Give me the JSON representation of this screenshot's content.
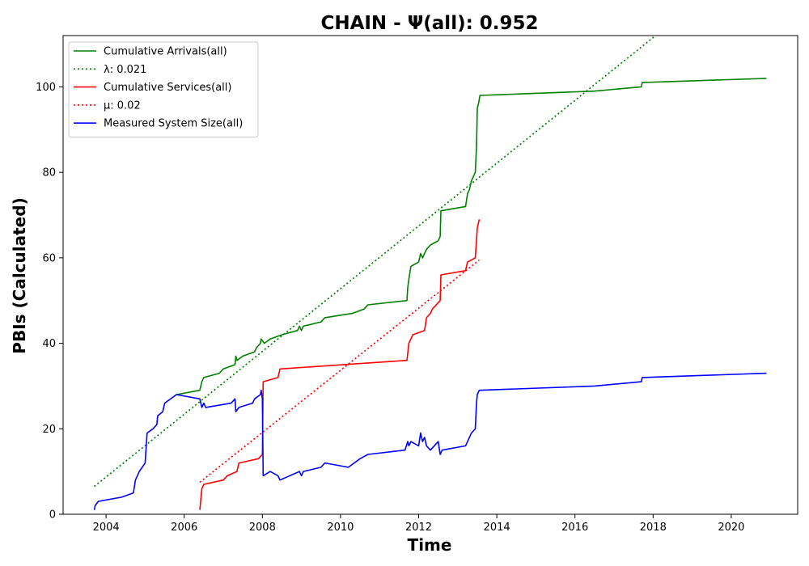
{
  "chart_data": {
    "type": "line",
    "title": "CHAIN -  Ψ(all): 0.952",
    "xlabel": "Time",
    "ylabel": "PBIs (Calculated)",
    "xlim": [
      2002.9,
      2021.7
    ],
    "ylim": [
      0,
      112
    ],
    "x_ticks": [
      2004,
      2006,
      2008,
      2010,
      2012,
      2014,
      2016,
      2018,
      2020
    ],
    "y_ticks": [
      0,
      20,
      40,
      60,
      80,
      100
    ],
    "grid": false,
    "legend_position": "upper-left",
    "series": [
      {
        "name": "Cumulative Arrivals(all)",
        "color": "#008000",
        "style": "solid",
        "points": [
          [
            2005.8,
            28
          ],
          [
            2006.4,
            29
          ],
          [
            2006.45,
            31
          ],
          [
            2006.5,
            32
          ],
          [
            2006.9,
            33
          ],
          [
            2007.0,
            34
          ],
          [
            2007.3,
            35
          ],
          [
            2007.32,
            37
          ],
          [
            2007.35,
            36
          ],
          [
            2007.5,
            37
          ],
          [
            2007.8,
            38
          ],
          [
            2007.85,
            39
          ],
          [
            2007.95,
            40
          ],
          [
            2007.97,
            41
          ],
          [
            2008.05,
            40
          ],
          [
            2008.2,
            41
          ],
          [
            2008.5,
            42
          ],
          [
            2008.9,
            43
          ],
          [
            2008.95,
            44
          ],
          [
            2009.0,
            43
          ],
          [
            2009.05,
            44
          ],
          [
            2009.5,
            45
          ],
          [
            2009.6,
            46
          ],
          [
            2010.3,
            47
          ],
          [
            2010.6,
            48
          ],
          [
            2010.7,
            49
          ],
          [
            2011.7,
            50
          ],
          [
            2011.72,
            53
          ],
          [
            2011.75,
            55
          ],
          [
            2011.8,
            58
          ],
          [
            2012.0,
            59
          ],
          [
            2012.05,
            61
          ],
          [
            2012.1,
            60
          ],
          [
            2012.2,
            62
          ],
          [
            2012.3,
            63
          ],
          [
            2012.5,
            64
          ],
          [
            2012.55,
            65
          ],
          [
            2012.57,
            71
          ],
          [
            2013.2,
            72
          ],
          [
            2013.25,
            75
          ],
          [
            2013.3,
            76
          ],
          [
            2013.35,
            78
          ],
          [
            2013.45,
            80
          ],
          [
            2013.48,
            86
          ],
          [
            2013.5,
            95
          ],
          [
            2013.53,
            96
          ],
          [
            2013.57,
            98
          ],
          [
            2016.5,
            99
          ],
          [
            2017.7,
            100
          ],
          [
            2017.72,
            101
          ],
          [
            2020.9,
            102
          ]
        ]
      },
      {
        "name": "λ: 0.021",
        "color": "#008000",
        "style": "dotted",
        "points": [
          [
            2003.7,
            6.5
          ],
          [
            2018.2,
            113
          ]
        ]
      },
      {
        "name": "Cumulative Services(all)",
        "color": "#ff0000",
        "style": "solid",
        "points": [
          [
            2006.4,
            1
          ],
          [
            2006.42,
            3
          ],
          [
            2006.45,
            6
          ],
          [
            2006.5,
            7
          ],
          [
            2007.0,
            8
          ],
          [
            2007.1,
            9
          ],
          [
            2007.35,
            10
          ],
          [
            2007.4,
            12
          ],
          [
            2007.9,
            13
          ],
          [
            2008.0,
            14
          ],
          [
            2008.02,
            31
          ],
          [
            2008.4,
            32
          ],
          [
            2008.45,
            34
          ],
          [
            2011.7,
            36
          ],
          [
            2011.75,
            40
          ],
          [
            2011.85,
            42
          ],
          [
            2012.15,
            43
          ],
          [
            2012.2,
            46
          ],
          [
            2012.3,
            47
          ],
          [
            2012.35,
            48
          ],
          [
            2012.55,
            50
          ],
          [
            2012.57,
            56
          ],
          [
            2013.2,
            57
          ],
          [
            2013.25,
            59
          ],
          [
            2013.45,
            60
          ],
          [
            2013.5,
            67
          ],
          [
            2013.55,
            69
          ]
        ]
      },
      {
        "name": "μ: 0.02",
        "color": "#ff0000",
        "style": "dotted",
        "points": [
          [
            2006.4,
            7.5
          ],
          [
            2013.55,
            59.5
          ]
        ]
      },
      {
        "name": "Measured System Size(all)",
        "color": "#0000ff",
        "style": "solid",
        "points": [
          [
            2003.7,
            1
          ],
          [
            2003.72,
            2
          ],
          [
            2003.8,
            3
          ],
          [
            2004.4,
            4
          ],
          [
            2004.7,
            5
          ],
          [
            2004.75,
            8
          ],
          [
            2004.8,
            9
          ],
          [
            2004.85,
            10
          ],
          [
            2005.0,
            12
          ],
          [
            2005.05,
            19
          ],
          [
            2005.2,
            20
          ],
          [
            2005.3,
            21
          ],
          [
            2005.32,
            23
          ],
          [
            2005.45,
            24
          ],
          [
            2005.5,
            26
          ],
          [
            2005.65,
            27
          ],
          [
            2005.8,
            28
          ],
          [
            2006.4,
            27
          ],
          [
            2006.45,
            25
          ],
          [
            2006.5,
            26
          ],
          [
            2006.55,
            25
          ],
          [
            2007.2,
            26
          ],
          [
            2007.3,
            27
          ],
          [
            2007.32,
            24
          ],
          [
            2007.4,
            25
          ],
          [
            2007.75,
            26
          ],
          [
            2007.8,
            27
          ],
          [
            2007.95,
            28
          ],
          [
            2007.97,
            29
          ],
          [
            2008.0,
            27
          ],
          [
            2008.02,
            9
          ],
          [
            2008.2,
            10
          ],
          [
            2008.4,
            9
          ],
          [
            2008.45,
            8
          ],
          [
            2008.95,
            10
          ],
          [
            2009.0,
            9
          ],
          [
            2009.05,
            10
          ],
          [
            2009.5,
            11
          ],
          [
            2009.6,
            12
          ],
          [
            2010.2,
            11
          ],
          [
            2010.5,
            13
          ],
          [
            2010.7,
            14
          ],
          [
            2011.65,
            15
          ],
          [
            2011.72,
            17
          ],
          [
            2011.75,
            16
          ],
          [
            2011.8,
            17
          ],
          [
            2012.0,
            16
          ],
          [
            2012.05,
            19
          ],
          [
            2012.1,
            17
          ],
          [
            2012.15,
            18
          ],
          [
            2012.2,
            16
          ],
          [
            2012.3,
            15
          ],
          [
            2012.5,
            17
          ],
          [
            2012.55,
            14
          ],
          [
            2012.6,
            15
          ],
          [
            2013.2,
            16
          ],
          [
            2013.25,
            17
          ],
          [
            2013.3,
            18
          ],
          [
            2013.35,
            19
          ],
          [
            2013.45,
            20
          ],
          [
            2013.48,
            26
          ],
          [
            2013.5,
            28
          ],
          [
            2013.55,
            29
          ],
          [
            2016.5,
            30
          ],
          [
            2017.7,
            31
          ],
          [
            2017.72,
            32
          ],
          [
            2020.9,
            33
          ]
        ]
      }
    ]
  }
}
